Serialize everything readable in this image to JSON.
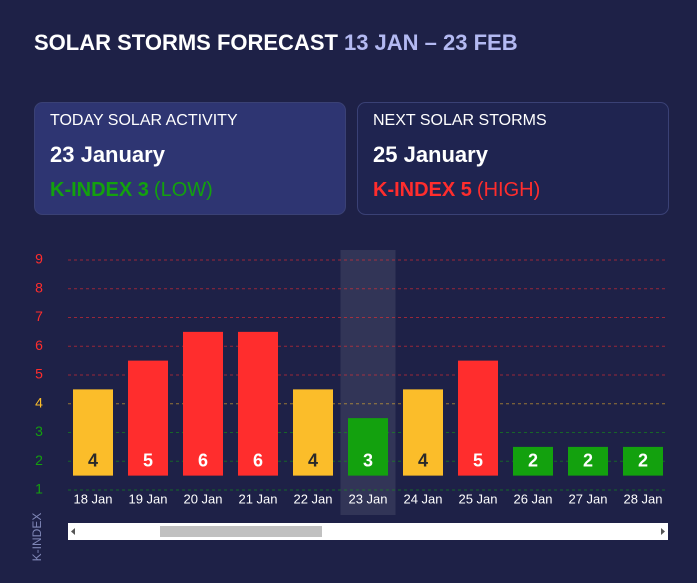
{
  "header": {
    "title": "SOLAR STORMS FORECAST",
    "date_range": "13 JAN – 23 FEB"
  },
  "cards": [
    {
      "label": "TODAY SOLAR ACTIVITY",
      "date": "23 January",
      "index": "K-INDEX 3",
      "level": "(LOW)",
      "color": "#13a10e",
      "background": "#2e3572"
    },
    {
      "label": "NEXT SOLAR STORMS",
      "date": "25 January",
      "index": "K-INDEX 5",
      "level": "(HIGH)",
      "color": "#ff2d2d",
      "background": "#1f2450"
    }
  ],
  "chart_data": {
    "type": "bar",
    "y_label": "K-INDEX",
    "categories": [
      "18 Jan",
      "19 Jan",
      "20 Jan",
      "21 Jan",
      "22 Jan",
      "23 Jan",
      "24 Jan",
      "25 Jan",
      "26 Jan",
      "27 Jan",
      "28 Jan"
    ],
    "values": [
      4,
      5,
      6,
      6,
      4,
      3,
      4,
      5,
      2,
      2,
      2
    ],
    "colors": [
      "#fbbd2a",
      "#ff2d2d",
      "#ff2d2d",
      "#ff2d2d",
      "#fbbd2a",
      "#13a10e",
      "#fbbd2a",
      "#ff2d2d",
      "#13a10e",
      "#13a10e",
      "#13a10e"
    ],
    "label_colors": [
      "#2a2a2a",
      "#ffffff",
      "#ffffff",
      "#ffffff",
      "#2a2a2a",
      "#ffffff",
      "#2a2a2a",
      "#ffffff",
      "#ffffff",
      "#ffffff",
      "#ffffff"
    ],
    "highlight_index": 5,
    "ylim": [
      0.5,
      9.5
    ],
    "yticks": [
      1,
      2,
      3,
      4,
      5,
      6,
      7,
      8,
      9
    ],
    "ytick_colors": [
      "#13a10e",
      "#13a10e",
      "#13a10e",
      "#fbbd2a",
      "#ff2d2d",
      "#ff2d2d",
      "#ff2d2d",
      "#ff2d2d",
      "#ff2d2d"
    ],
    "grid": true
  }
}
